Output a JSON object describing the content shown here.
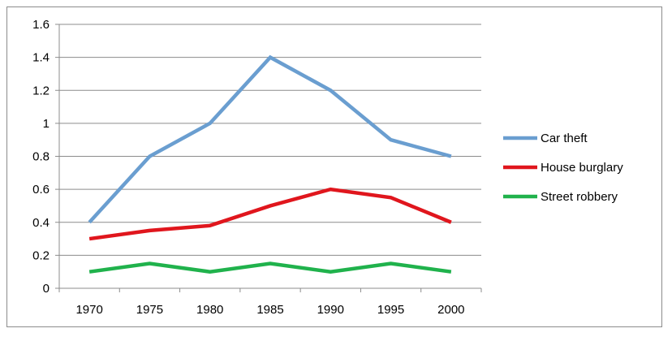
{
  "chart_data": {
    "type": "line",
    "title": "",
    "xlabel": "",
    "ylabel": "",
    "x": [
      "1970",
      "1975",
      "1980",
      "1985",
      "1990",
      "1995",
      "2000"
    ],
    "ylim": [
      0,
      1.6
    ],
    "y_ticks": [
      "0",
      "0.2",
      "0.4",
      "0.6",
      "0.8",
      "1",
      "1.2",
      "1.4",
      "1.6"
    ],
    "grid": "horizontal",
    "legend_position": "right",
    "series": [
      {
        "name": "Car theft",
        "color": "#6a9ed0",
        "values": [
          0.4,
          0.8,
          1.0,
          1.4,
          1.2,
          0.9,
          0.8
        ]
      },
      {
        "name": "House burglary",
        "color": "#e0161d",
        "values": [
          0.3,
          0.35,
          0.38,
          0.5,
          0.6,
          0.55,
          0.4
        ]
      },
      {
        "name": "Street robbery",
        "color": "#20b24c",
        "values": [
          0.1,
          0.15,
          0.1,
          0.15,
          0.1,
          0.15,
          0.1
        ]
      }
    ]
  }
}
